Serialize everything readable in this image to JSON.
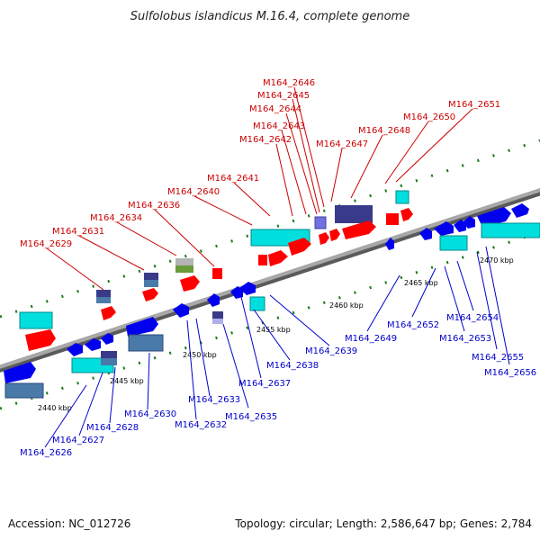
{
  "title": "Sulfolobus islandicus M.16.4, complete genome",
  "footer": {
    "accession": "Accession: NC_012726",
    "stats": "Topology: circular; Length: 2,586,647 bp; Genes: 2,784"
  },
  "colors": {
    "backbone": "#8a8a8a",
    "tick": "#1a7a1a",
    "red_label": "#cc0000",
    "blue_label": "#0000cc",
    "red_gene": "#ff0000",
    "blue_gene": "#0000ee",
    "cyan_gene": "#00dede",
    "navy_gene": "#3a3a8a",
    "steel_gene": "#4a7aaa",
    "olive_gene": "#6a9a3a"
  },
  "kbp_labels": [
    "2440 kbp",
    "2445 kbp",
    "2450 kbp",
    "2455 kbp",
    "2460 kbp",
    "2465 kbp",
    "2470 kbp"
  ],
  "top_genes": [
    "M164_2629",
    "M164_2631",
    "M164_2634",
    "M164_2636",
    "M164_2640",
    "M164_2641",
    "M164_2642",
    "M164_2643",
    "M164_2644",
    "M164_2645",
    "M164_2646",
    "M164_2647",
    "M164_2648",
    "M164_2650",
    "M164_2651"
  ],
  "bottom_genes": [
    "M164_2626",
    "M164_2627",
    "M164_2628",
    "M164_2630",
    "M164_2632",
    "M164_2633",
    "M164_2635",
    "M164_2637",
    "M164_2638",
    "M164_2639",
    "M164_2649",
    "M164_2652",
    "M164_2653",
    "M164_2654",
    "M164_2655",
    "M164_2656"
  ]
}
